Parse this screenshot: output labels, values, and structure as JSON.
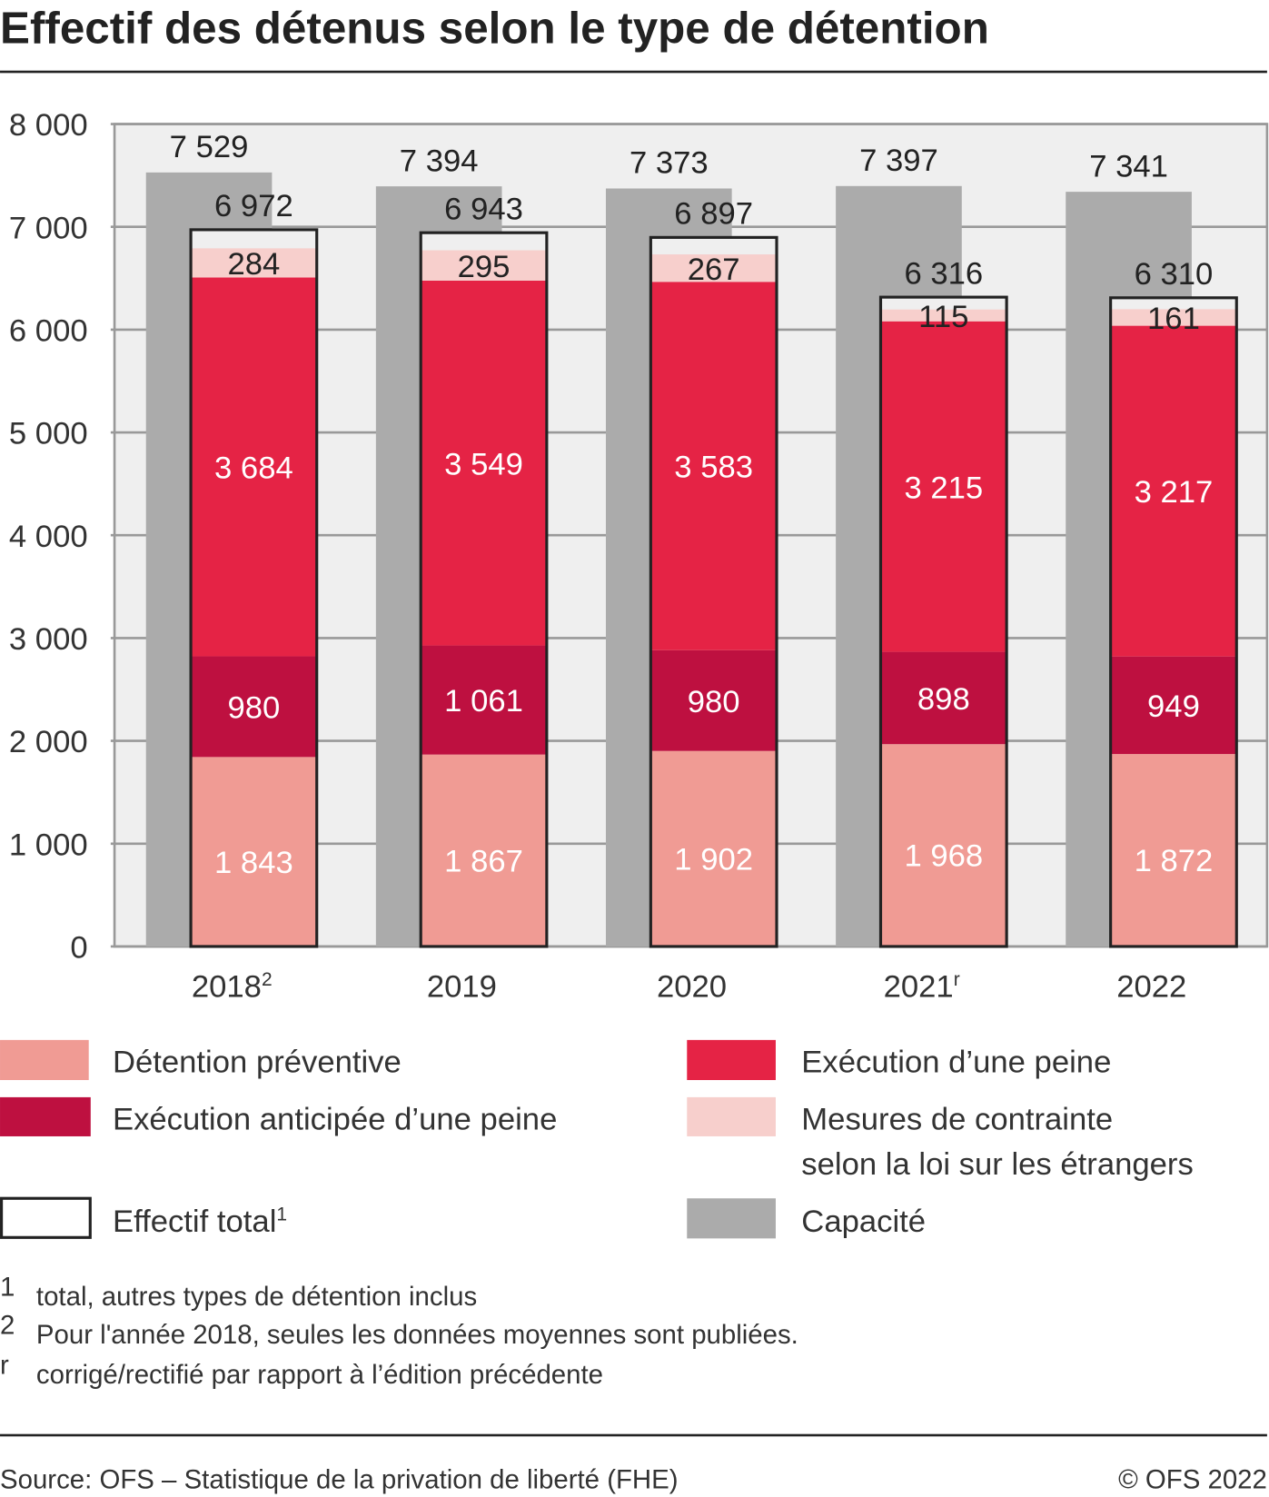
{
  "chart_data": {
    "type": "bar",
    "title": "Effectif des détenus selon le type de détention",
    "xlabel": "",
    "ylabel": "",
    "ylim": [
      0,
      8000
    ],
    "yticks": [
      "0",
      "1 000",
      "2 000",
      "3 000",
      "4 000",
      "5 000",
      "6 000",
      "7 000",
      "8 000"
    ],
    "grid": true,
    "categories": [
      "2018",
      "2019",
      "2020",
      "2021",
      "2022"
    ],
    "category_superscripts": [
      "2",
      "",
      "",
      "r",
      ""
    ],
    "series": [
      {
        "name": "Détention préventive",
        "color": "#f09b94",
        "values": [
          1843,
          1867,
          1902,
          1968,
          1872
        ],
        "labels": [
          "1 843",
          "1 867",
          "1 902",
          "1 968",
          "1 872"
        ]
      },
      {
        "name": "Exécution anticipée d’une peine",
        "color": "#be1040",
        "values": [
          980,
          1061,
          980,
          898,
          949
        ],
        "labels": [
          "980",
          "1 061",
          "980",
          "898",
          "949"
        ]
      },
      {
        "name": "Exécution d’une peine",
        "color": "#e52345",
        "values": [
          3684,
          3549,
          3583,
          3215,
          3217
        ],
        "labels": [
          "3 684",
          "3 549",
          "3 583",
          "3 215",
          "3 217"
        ]
      },
      {
        "name": "Mesures de contrainte selon la loi sur les étrangers",
        "color": "#f7cfcc",
        "values": [
          284,
          295,
          267,
          115,
          161
        ],
        "labels": [
          "284",
          "295",
          "267",
          "115",
          "161"
        ]
      }
    ],
    "total": {
      "name": "Effectif total",
      "superscript": "1",
      "values": [
        6972,
        6943,
        6897,
        6316,
        6310
      ],
      "labels": [
        "6 972",
        "6 943",
        "6 897",
        "6 316",
        "6 310"
      ]
    },
    "capacity": {
      "name": "Capacité",
      "color": "#ababab",
      "values": [
        7529,
        7394,
        7373,
        7397,
        7341
      ],
      "labels": [
        "7 529",
        "7 394",
        "7 373",
        "7 397",
        "7 341"
      ]
    },
    "legend": {
      "left": [
        "Détention préventive",
        "Exécution anticipée d’une peine",
        "Effectif total"
      ],
      "right": [
        "Exécution d’une peine",
        "Mesures de contrainte",
        "selon la loi sur les étrangers",
        "Capacité"
      ],
      "total_superscript": "1"
    },
    "footnotes": [
      {
        "mark": "1",
        "text": "total, autres types de détention inclus"
      },
      {
        "mark": "2",
        "text": "Pour l'année 2018, seules les données moyennes sont publiées."
      },
      {
        "mark": "r",
        "text": "corrigé/rectifié par rapport à l’édition précédente"
      }
    ],
    "source": "Source: OFS – Statistique de la privation de liberté (FHE)",
    "copyright": "© OFS 2022"
  }
}
